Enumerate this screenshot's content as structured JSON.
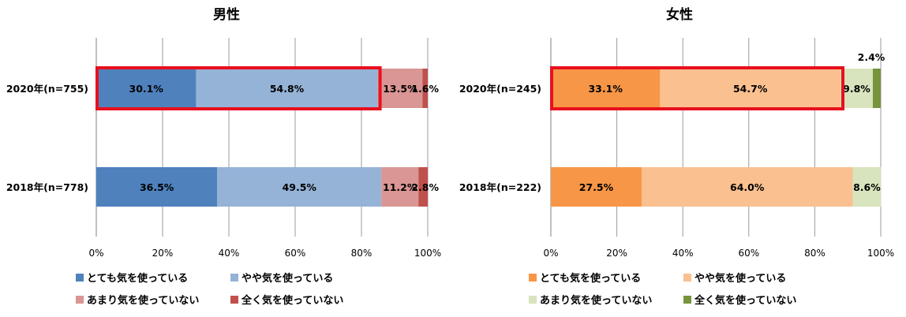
{
  "chart_data": [
    {
      "type": "bar",
      "orientation": "horizontal",
      "stacked": true,
      "title": "男性",
      "categories": [
        "2020年(n=755)",
        "2018年(n=778)"
      ],
      "series": [
        {
          "name": "とても気を使っている",
          "values": [
            30.1,
            36.5
          ],
          "labels": [
            "30.1%",
            "36.5%"
          ],
          "color": "#4f81bd"
        },
        {
          "name": "やや気を使っている",
          "values": [
            54.8,
            49.5
          ],
          "labels": [
            "54.8%",
            "49.5%"
          ],
          "color": "#95b3d7"
        },
        {
          "name": "あまり気を使っていない",
          "values": [
            13.5,
            11.2
          ],
          "labels": [
            "13.5%",
            "11.2%"
          ],
          "color": "#d99694"
        },
        {
          "name": "全く気を使っていない",
          "values": [
            1.6,
            2.8
          ],
          "labels": [
            "1.6%",
            "2.8%"
          ],
          "color": "#c0504d"
        }
      ],
      "xlim": [
        0,
        100
      ],
      "xticks": [
        "0%",
        "20%",
        "40%",
        "60%",
        "80%",
        "100%"
      ],
      "grid": true,
      "legend": "bottom",
      "highlight": {
        "category": "2020年(n=755)",
        "series_count": 2,
        "color": "#e8101e"
      }
    },
    {
      "type": "bar",
      "orientation": "horizontal",
      "stacked": true,
      "title": "女性",
      "categories": [
        "2020年(n=245)",
        "2018年(n=222)"
      ],
      "series": [
        {
          "name": "とても気を使っている",
          "values": [
            33.1,
            27.5
          ],
          "labels": [
            "33.1%",
            "27.5%"
          ],
          "color": "#f79646"
        },
        {
          "name": "やや気を使っている",
          "values": [
            54.7,
            64.0
          ],
          "labels": [
            "54.7%",
            "64.0%"
          ],
          "color": "#fac090"
        },
        {
          "name": "あまり気を使っていない",
          "values": [
            9.8,
            8.6
          ],
          "labels": [
            "9.8%",
            "8.6%"
          ],
          "color": "#d7e4bd"
        },
        {
          "name": "全く気を使っていない",
          "values": [
            2.4,
            0
          ],
          "labels": [
            "2.4%",
            ""
          ],
          "color": "#77933c"
        }
      ],
      "xlim": [
        0,
        100
      ],
      "xticks": [
        "0%",
        "20%",
        "40%",
        "60%",
        "80%",
        "100%"
      ],
      "grid": true,
      "legend": "bottom",
      "highlight": {
        "category": "2020年(n=245)",
        "series_count": 2,
        "color": "#e8101e"
      }
    }
  ]
}
